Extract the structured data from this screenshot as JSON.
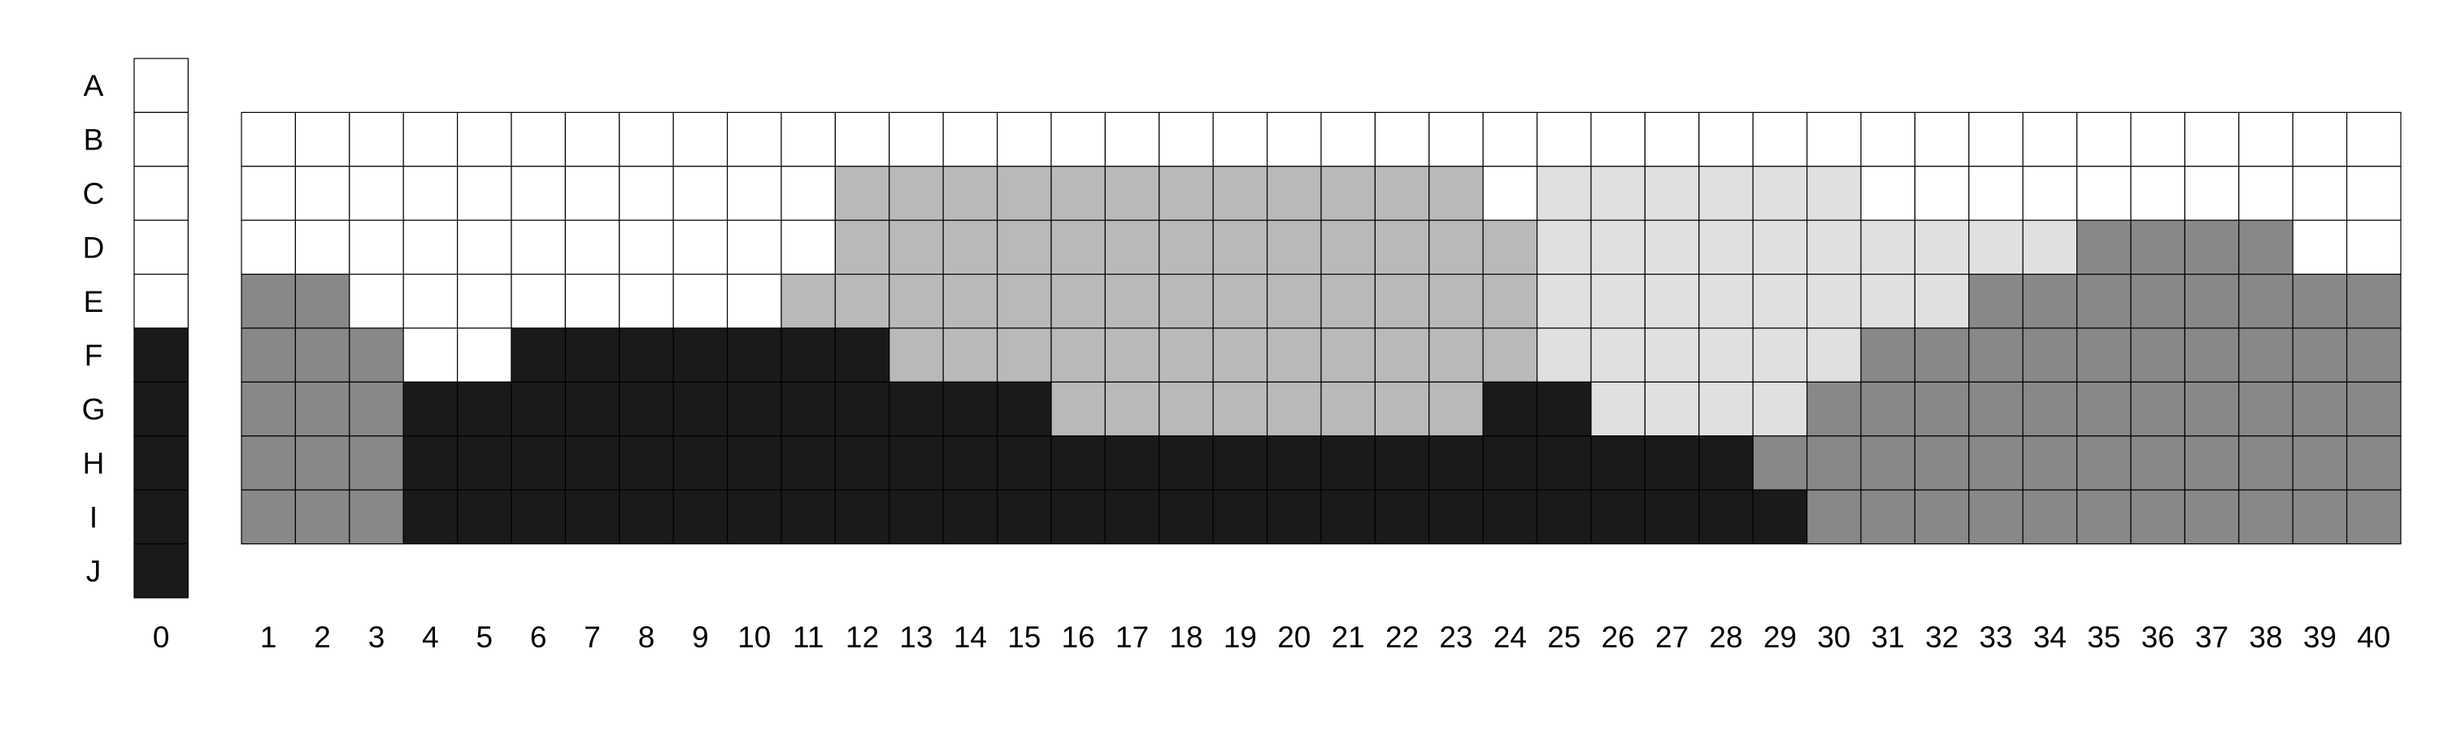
{
  "chart_data": {
    "type": "heatmap",
    "row_labels": [
      "A",
      "B",
      "C",
      "D",
      "E",
      "F",
      "G",
      "H",
      "I",
      "J"
    ],
    "reference_column": {
      "label": "0",
      "values": [
        0,
        0,
        0,
        0,
        0,
        4,
        4,
        4,
        4,
        4
      ]
    },
    "column_labels": [
      "1",
      "2",
      "3",
      "4",
      "5",
      "6",
      "7",
      "8",
      "9",
      "10",
      "11",
      "12",
      "13",
      "14",
      "15",
      "16",
      "17",
      "18",
      "19",
      "20",
      "21",
      "22",
      "23",
      "24",
      "25",
      "26",
      "27",
      "28",
      "29",
      "30",
      "31",
      "32",
      "33",
      "34",
      "35",
      "36",
      "37",
      "38",
      "39",
      "40"
    ],
    "grid_rows": [
      "B",
      "C",
      "D",
      "E",
      "F",
      "G",
      "H",
      "I"
    ],
    "grid_values": [
      [
        0,
        0,
        0,
        0,
        0,
        0,
        0,
        0,
        0,
        0,
        0,
        0,
        0,
        0,
        0,
        0,
        0,
        0,
        0,
        0,
        0,
        0,
        0,
        0,
        0,
        0,
        0,
        0,
        0,
        0,
        0,
        0,
        0,
        0,
        0,
        0,
        0,
        0,
        0,
        0
      ],
      [
        0,
        0,
        0,
        0,
        0,
        0,
        0,
        0,
        0,
        0,
        0,
        2,
        2,
        2,
        2,
        2,
        2,
        2,
        2,
        2,
        2,
        2,
        2,
        0,
        1,
        1,
        1,
        1,
        1,
        1,
        0,
        0,
        0,
        0,
        0,
        0,
        0,
        0,
        0,
        0
      ],
      [
        0,
        0,
        0,
        0,
        0,
        0,
        0,
        0,
        0,
        0,
        0,
        2,
        2,
        2,
        2,
        2,
        2,
        2,
        2,
        2,
        2,
        2,
        2,
        2,
        1,
        1,
        1,
        1,
        1,
        1,
        1,
        1,
        1,
        1,
        3,
        3,
        3,
        3,
        0,
        0
      ],
      [
        3,
        3,
        0,
        0,
        0,
        0,
        0,
        0,
        0,
        0,
        2,
        2,
        2,
        2,
        2,
        2,
        2,
        2,
        2,
        2,
        2,
        2,
        2,
        2,
        1,
        1,
        1,
        1,
        1,
        1,
        1,
        1,
        3,
        3,
        3,
        3,
        3,
        3,
        3,
        3
      ],
      [
        3,
        3,
        3,
        0,
        0,
        4,
        4,
        4,
        4,
        4,
        4,
        4,
        2,
        2,
        2,
        2,
        2,
        2,
        2,
        2,
        2,
        2,
        2,
        2,
        1,
        1,
        1,
        1,
        1,
        1,
        3,
        3,
        3,
        3,
        3,
        3,
        3,
        3,
        3,
        3
      ],
      [
        3,
        3,
        3,
        4,
        4,
        4,
        4,
        4,
        4,
        4,
        4,
        4,
        4,
        4,
        4,
        2,
        2,
        2,
        2,
        2,
        2,
        2,
        2,
        4,
        4,
        1,
        1,
        1,
        1,
        3,
        3,
        3,
        3,
        3,
        3,
        3,
        3,
        3,
        3,
        3
      ],
      [
        3,
        3,
        3,
        4,
        4,
        4,
        4,
        4,
        4,
        4,
        4,
        4,
        4,
        4,
        4,
        4,
        4,
        4,
        4,
        4,
        4,
        4,
        4,
        4,
        4,
        4,
        4,
        4,
        3,
        3,
        3,
        3,
        3,
        3,
        3,
        3,
        3,
        3,
        3,
        3
      ],
      [
        3,
        3,
        3,
        4,
        4,
        4,
        4,
        4,
        4,
        4,
        4,
        4,
        4,
        4,
        4,
        4,
        4,
        4,
        4,
        4,
        4,
        4,
        4,
        4,
        4,
        4,
        4,
        4,
        4,
        3,
        3,
        3,
        3,
        3,
        3,
        3,
        3,
        3,
        3,
        3
      ]
    ],
    "palette": [
      "#ffffff",
      "#e0e0e0",
      "#b9b9b9",
      "#888888",
      "#1a1a1a"
    ]
  }
}
